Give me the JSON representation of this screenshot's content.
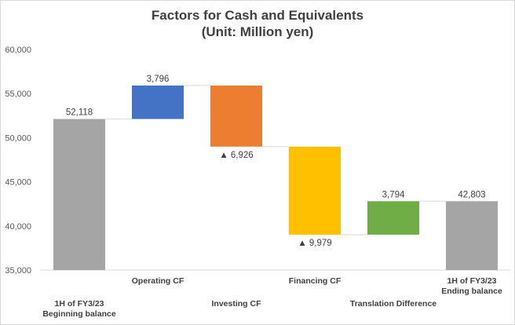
{
  "chart_data": {
    "type": "bar",
    "variant": "waterfall",
    "title_lines": [
      "Factors for Cash and Equivalents",
      "(Unit: Million yen)"
    ],
    "ylim": [
      35000,
      60000
    ],
    "yticks": [
      35000,
      40000,
      45000,
      50000,
      55000,
      60000
    ],
    "ytick_labels": [
      "35,000",
      "40,000",
      "45,000",
      "50,000",
      "55,000",
      "60,000"
    ],
    "grid": false,
    "legend": "none",
    "categories": [
      {
        "label_lines": [
          "1H of FY3/23",
          "Beginning balance"
        ],
        "row": "lower",
        "kind": "total",
        "value": 52118,
        "data_label": "52,118",
        "color": "#a5a5a5"
      },
      {
        "label_lines": [
          "Operating CF"
        ],
        "row": "upper",
        "kind": "increase",
        "value": 3796,
        "data_label": "3,796",
        "color": "#4472c4"
      },
      {
        "label_lines": [
          "Investing CF"
        ],
        "row": "lower",
        "kind": "decrease",
        "value": -6926,
        "data_label": "▲ 6,926",
        "color": "#ed7d31"
      },
      {
        "label_lines": [
          "Financing CF"
        ],
        "row": "upper",
        "kind": "decrease",
        "value": -9979,
        "data_label": "▲ 9,979",
        "color": "#ffc000"
      },
      {
        "label_lines": [
          "Translation Difference"
        ],
        "row": "lower",
        "kind": "increase",
        "value": 3794,
        "data_label": "3,794",
        "color": "#70ad47"
      },
      {
        "label_lines": [
          "1H of FY3/23",
          "Ending balance"
        ],
        "row": "upper",
        "kind": "total",
        "value": 42803,
        "data_label": "42,803",
        "color": "#a5a5a5"
      }
    ],
    "connector_color": "#d9d9d9"
  }
}
